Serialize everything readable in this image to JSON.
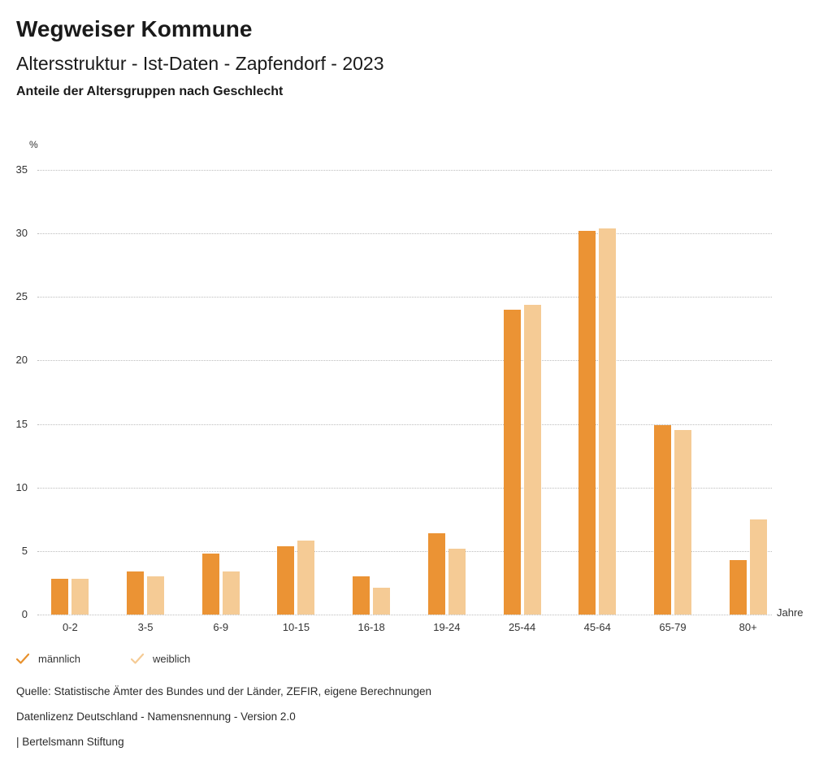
{
  "header": {
    "title": "Wegweiser Kommune",
    "subtitle": "Altersstruktur - Ist-Daten - Zapfendorf - 2023",
    "caption": "Anteile der Altersgruppen nach Geschlecht"
  },
  "axis": {
    "y_unit_label": "%",
    "x_unit_label": "Jahre"
  },
  "chart_data": {
    "type": "bar",
    "title": "Anteile der Altersgruppen nach Geschlecht",
    "categories": [
      "0-2",
      "3-5",
      "6-9",
      "10-15",
      "16-18",
      "19-24",
      "25-44",
      "45-64",
      "65-79",
      "80+"
    ],
    "series": [
      {
        "name": "männlich",
        "color": "#EB9334",
        "values": [
          2.8,
          3.4,
          4.8,
          5.4,
          3.0,
          6.4,
          24.0,
          30.2,
          14.9,
          4.3
        ]
      },
      {
        "name": "weiblich",
        "color": "#F5CB95",
        "values": [
          2.8,
          3.0,
          3.4,
          5.8,
          2.1,
          5.2,
          24.4,
          30.4,
          14.5,
          7.5
        ]
      }
    ],
    "xlabel": "Jahre",
    "ylabel": "%",
    "ylim": [
      0,
      35
    ],
    "yticks": [
      0,
      5,
      10,
      15,
      20,
      25,
      30,
      35
    ],
    "grid": "horizontal-dotted",
    "legend_position": "bottom-left"
  },
  "legend": [
    {
      "label": "männlich",
      "color": "#E8912D"
    },
    {
      "label": "weiblich",
      "color": "#F5CB95"
    }
  ],
  "footer": {
    "source": "Quelle: Statistische Ämter des Bundes und der Länder, ZEFIR, eigene Berechnungen",
    "license": "Datenlizenz Deutschland - Namensnennung - Version 2.0",
    "attribution": "| Bertelsmann Stiftung"
  }
}
